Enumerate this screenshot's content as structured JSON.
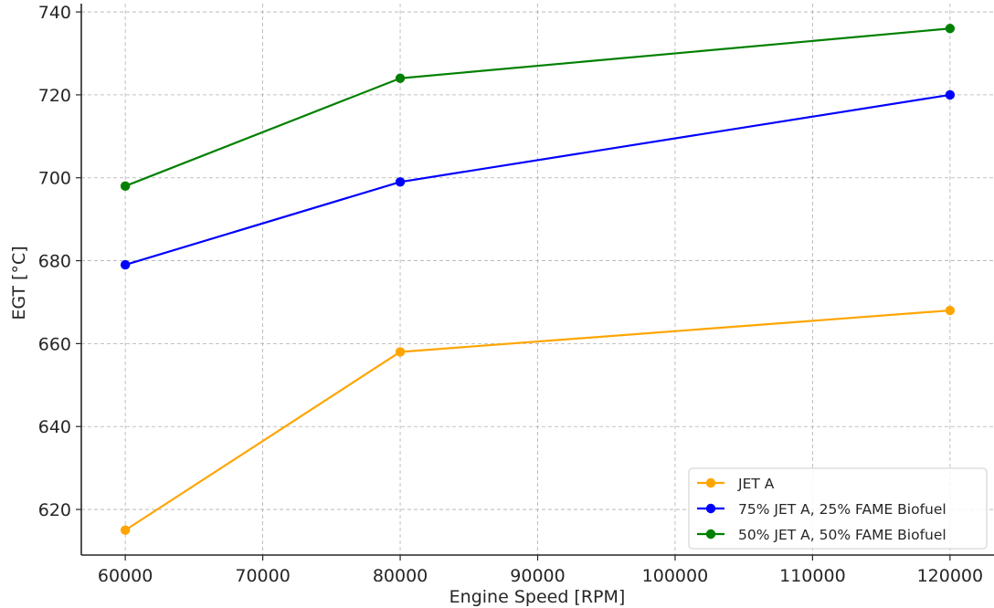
{
  "chart_data": {
    "type": "line",
    "title": "",
    "xlabel": "Engine Speed [RPM]",
    "ylabel": "EGT [°C]",
    "x": [
      60000,
      80000,
      120000
    ],
    "xticks": [
      60000,
      70000,
      80000,
      90000,
      100000,
      110000,
      120000
    ],
    "yticks": [
      620,
      640,
      660,
      680,
      700,
      720,
      740
    ],
    "xlim": [
      56800,
      123200
    ],
    "ylim": [
      609,
      742
    ],
    "grid": true,
    "legend_position": "lower-right",
    "series": [
      {
        "name": "JET A",
        "color": "#ffa500",
        "values": [
          615,
          658,
          668
        ]
      },
      {
        "name": "75% JET A, 25% FAME Biofuel",
        "color": "#0000ff",
        "values": [
          679,
          699,
          720
        ]
      },
      {
        "name": "50% JET A, 50% FAME Biofuel",
        "color": "#008000",
        "values": [
          698,
          724,
          736
        ]
      }
    ]
  }
}
